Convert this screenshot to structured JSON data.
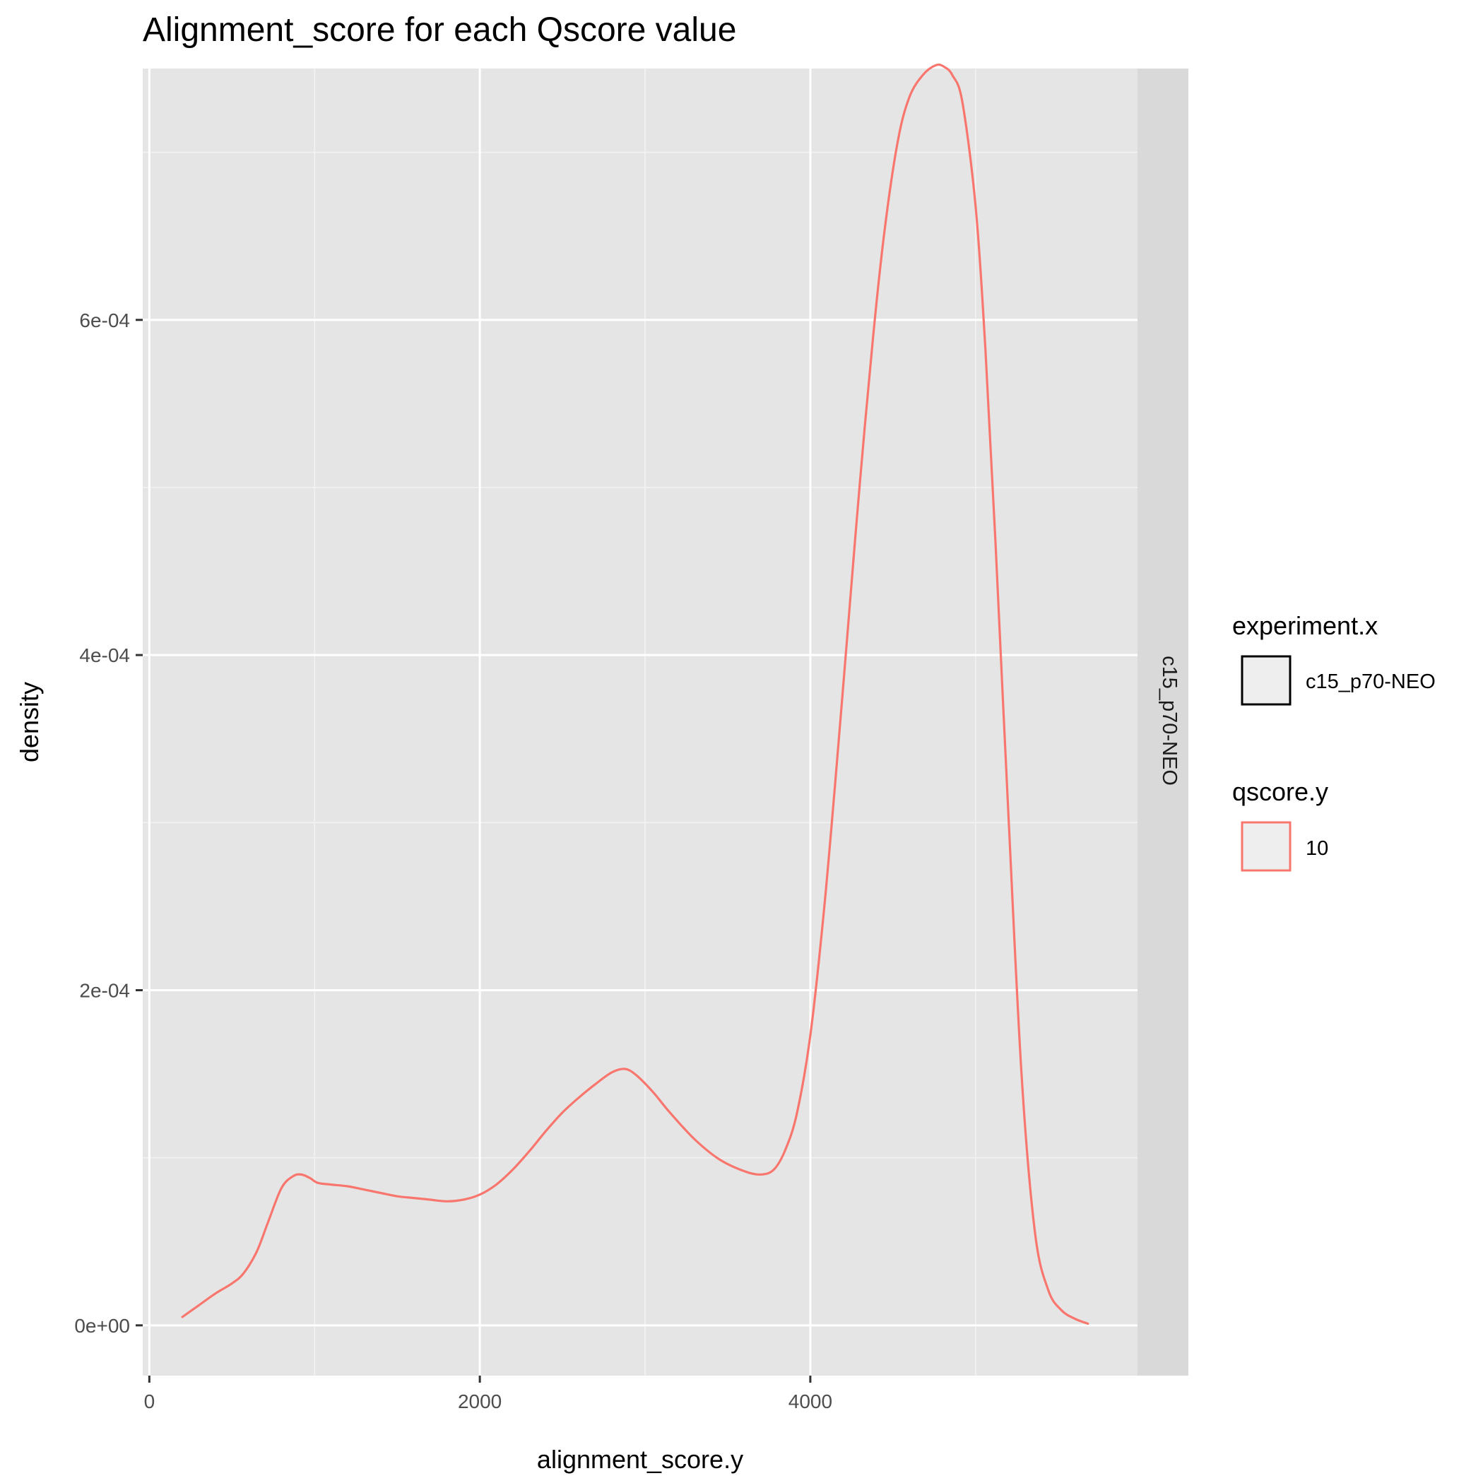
{
  "chart_data": {
    "type": "line",
    "title": "Alignment_score for each Qscore value",
    "xlabel": "alignment_score.y",
    "ylabel": "density",
    "xlim": [
      -40,
      5980
    ],
    "ylim": [
      -3e-05,
      0.00075
    ],
    "x_ticks": [
      0,
      2000,
      4000
    ],
    "x_tick_labels": [
      "0",
      "2000",
      "4000"
    ],
    "y_ticks": [
      0,
      0.0002,
      0.0004,
      0.0006
    ],
    "y_tick_labels": [
      "0e+00",
      "2e-04",
      "4e-04",
      "6e-04"
    ],
    "grid": true,
    "facet_label": "c15_p70-NEO",
    "legend_position": "right",
    "legends": [
      {
        "title": "experiment.x",
        "entries": [
          {
            "label": "c15_p70-NEO",
            "color": "#000000"
          }
        ]
      },
      {
        "title": "qscore.y",
        "entries": [
          {
            "label": "10",
            "color": "#f8766d"
          }
        ]
      }
    ],
    "series": [
      {
        "name": "10",
        "color": "#f8766d",
        "x": [
          200,
          300,
          400,
          500,
          570,
          650,
          720,
          800,
          870,
          920,
          970,
          1020,
          1100,
          1200,
          1300,
          1400,
          1500,
          1600,
          1700,
          1800,
          1900,
          2000,
          2100,
          2200,
          2300,
          2400,
          2500,
          2600,
          2700,
          2800,
          2880,
          2950,
          3050,
          3150,
          3300,
          3450,
          3600,
          3700,
          3780,
          3850,
          3920,
          4000,
          4080,
          4150,
          4230,
          4300,
          4380,
          4450,
          4530,
          4600,
          4680,
          4760,
          4810,
          4860,
          4920,
          5000,
          5060,
          5120,
          5200,
          5280,
          5360,
          5440,
          5520,
          5600,
          5680
        ],
        "y": [
          5e-06,
          1.2e-05,
          1.9e-05,
          2.5e-05,
          3.1e-05,
          4.4e-05,
          6.2e-05,
          8.2e-05,
          8.9e-05,
          9e-05,
          8.8e-05,
          8.5e-05,
          8.4e-05,
          8.3e-05,
          8.1e-05,
          7.9e-05,
          7.7e-05,
          7.6e-05,
          7.5e-05,
          7.4e-05,
          7.5e-05,
          7.8e-05,
          8.4e-05,
          9.3e-05,
          0.000104,
          0.000116,
          0.000127,
          0.000136,
          0.000144,
          0.000151,
          0.000153,
          0.000149,
          0.000139,
          0.000127,
          0.000111,
          9.9e-05,
          9.2e-05,
          9e-05,
          9.3e-05,
          0.000105,
          0.000127,
          0.000173,
          0.000245,
          0.000323,
          0.000419,
          0.000503,
          0.00059,
          0.000654,
          0.000707,
          0.000733,
          0.000746,
          0.000752,
          0.000751,
          0.000746,
          0.00073,
          0.000668,
          0.000582,
          0.000468,
          0.000302,
          0.000147,
          5.5e-05,
          2.1e-05,
          9e-06,
          4e-06,
          1e-06
        ]
      }
    ]
  }
}
